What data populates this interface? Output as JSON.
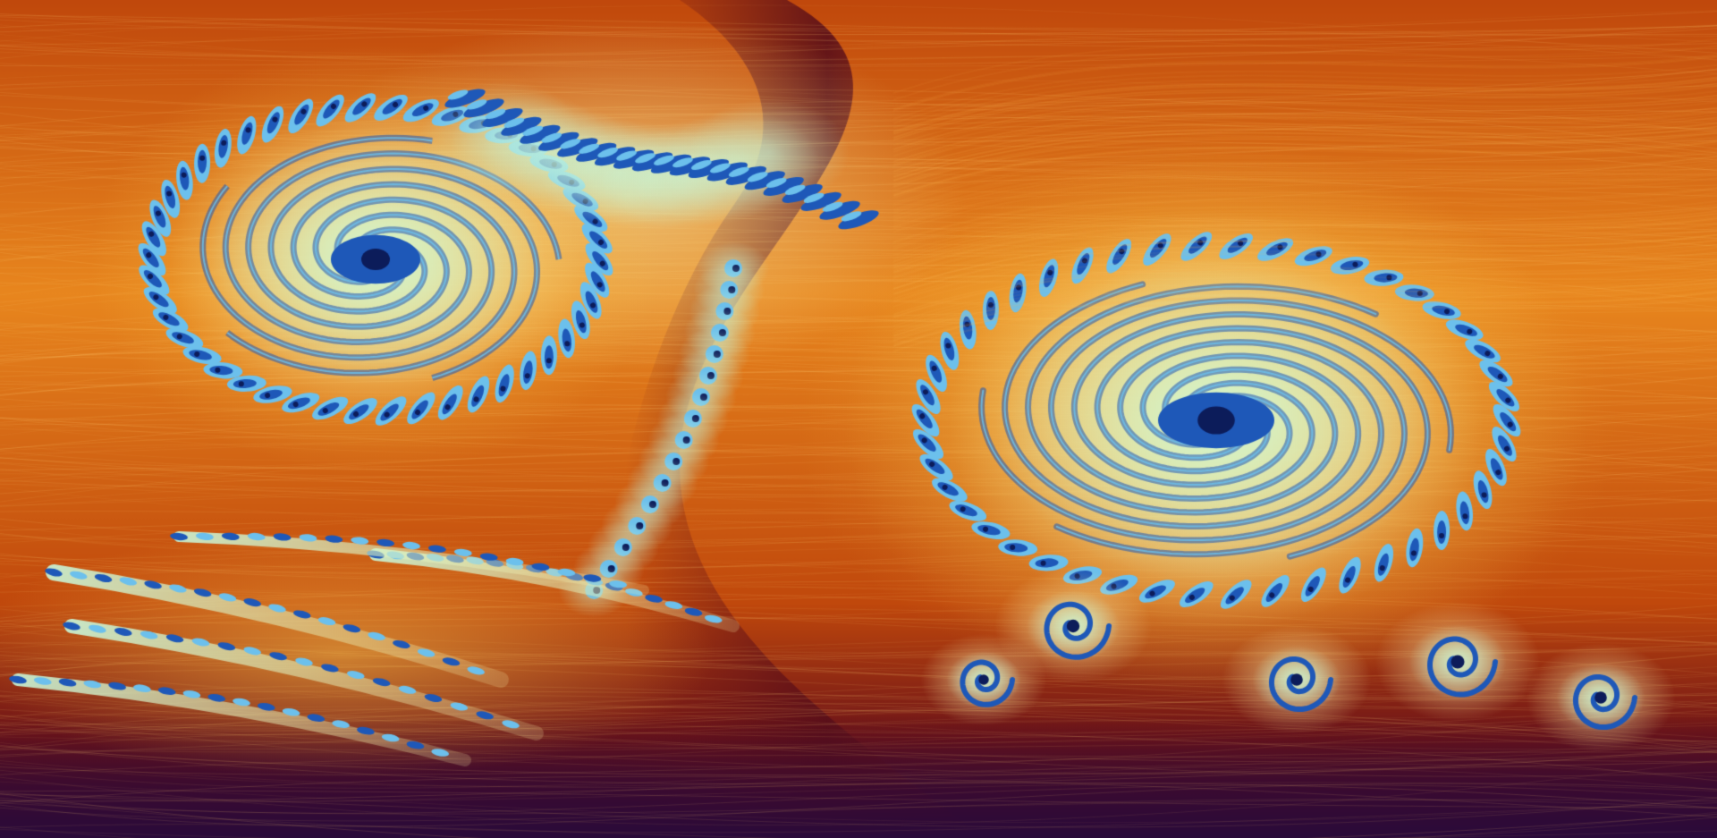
{
  "image": {
    "subject": "fractal",
    "palette": {
      "deep_purple": "#2a0a3a",
      "dark_red": "#6e1418",
      "burnt_orange": "#c0480c",
      "orange": "#e8861e",
      "gold": "#f6c24a",
      "pale_yellow": "#f8f0a8",
      "mint": "#c8f6d8",
      "sky_blue": "#6cc0ec",
      "royal_blue": "#1e58b8",
      "navy": "#0c1c5a"
    }
  }
}
